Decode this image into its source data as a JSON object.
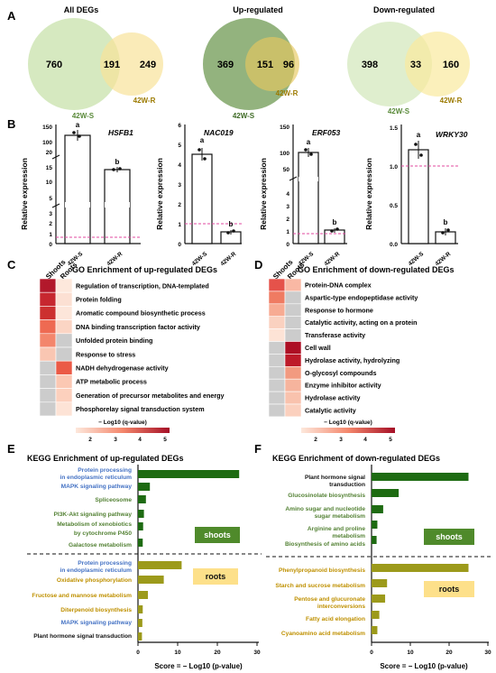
{
  "panels": {
    "A": "A",
    "B": "B",
    "C": "C",
    "D": "D",
    "E": "E",
    "F": "F"
  },
  "venn": [
    {
      "title": "All DEGs",
      "left": 760,
      "overlap": 191,
      "right": 249,
      "left_label": "42W-S",
      "right_label": "42W-R",
      "colors": [
        "#cfe5b5",
        "#f8e29a"
      ]
    },
    {
      "title": "Up-regulated",
      "left": 369,
      "overlap": 151,
      "right": 96,
      "left_label": "42W-S",
      "right_label": "42W-R",
      "colors": [
        "#6f9a53",
        "#e6c760"
      ]
    },
    {
      "title": "Down-regulated",
      "left": 398,
      "overlap": 33,
      "right": 160,
      "left_label": "42W-S",
      "right_label": "42W-R",
      "colors": [
        "#d9ebc6",
        "#faea9e"
      ]
    }
  ],
  "qpcr": {
    "ylabel": "Relative expression",
    "categories": [
      "42W-S",
      "42W-R"
    ],
    "ref_color": "#e0489f",
    "genes": [
      {
        "name": "HSFB1",
        "values": [
          140,
          20
        ],
        "letters": [
          "a",
          "b"
        ],
        "ticks": [
          "0",
          "1",
          "2",
          "3",
          "5",
          "10",
          "15",
          "20",
          "100",
          "150"
        ]
      },
      {
        "name": "NAC019",
        "values": [
          4.5,
          0.6
        ],
        "letters": [
          "a",
          "b"
        ],
        "ticks": [
          "0",
          "1",
          "2",
          "3",
          "4",
          "5",
          "6"
        ]
      },
      {
        "name": "ERF053",
        "values": [
          100,
          1.5
        ],
        "letters": [
          "a",
          "b"
        ],
        "ticks": [
          "0",
          "1",
          "2",
          "3",
          "4",
          "50",
          "100",
          "150"
        ]
      },
      {
        "name": "WRKY30",
        "values": [
          1.2,
          0.15
        ],
        "letters": [
          "a",
          "b"
        ],
        "ticks": [
          "0.0",
          "0.5",
          "1.0",
          "1.5"
        ]
      }
    ]
  },
  "go_up": {
    "title": "GO Enrichment of up-regulated DEGs",
    "columns": [
      "Shoots",
      "Roots"
    ],
    "terms": [
      {
        "label": "Regulation of transcription, DNA-templated",
        "cells": [
          "#b2182b",
          "#fde8dc"
        ]
      },
      {
        "label": "Protein folding",
        "cells": [
          "#c7272f",
          "#fce0d3"
        ]
      },
      {
        "label": "Aromatic compound biosynthetic process",
        "cells": [
          "#cc3030",
          "#fde6da"
        ]
      },
      {
        "label": "DNA binding transcription factor activity",
        "cells": [
          "#ee6a52",
          "#fbd5c4"
        ]
      },
      {
        "label": "Unfolded protein binding",
        "cells": [
          "#f3866c",
          "#cccccc"
        ]
      },
      {
        "label": "Response to stress",
        "cells": [
          "#f9c6b2",
          "#cccccc"
        ]
      },
      {
        "label": "NADH dehydrogenase activity",
        "cells": [
          "#cccccc",
          "#eb5a46"
        ]
      },
      {
        "label": "ATP metabolic process",
        "cells": [
          "#cccccc",
          "#fbc8b3"
        ]
      },
      {
        "label": "Generation of precursor metabolites and energy",
        "cells": [
          "#cccccc",
          "#fcd0bd"
        ]
      },
      {
        "label": "Phosphorelay signal transduction system",
        "cells": [
          "#cccccc",
          "#fde3d6"
        ]
      }
    ],
    "legend_label": "− Log10  (q-value)",
    "legend_ticks": [
      "2",
      "3",
      "4",
      "5"
    ]
  },
  "go_down": {
    "title": "GO Enrichment of down-regulated  DEGs",
    "columns": [
      "Shoots",
      "Roots"
    ],
    "terms": [
      {
        "label": "Protein-DNA complex",
        "cells": [
          "#e5524a",
          "#f9b8a4"
        ]
      },
      {
        "label": "Aspartic-type endopeptidase activity",
        "cells": [
          "#ef7b62",
          "#cccccc"
        ]
      },
      {
        "label": "Response to hormone",
        "cells": [
          "#f7ab93",
          "#cccccc"
        ]
      },
      {
        "label": "Catalytic activity, acting on a protein",
        "cells": [
          "#fad1c0",
          "#cccccc"
        ]
      },
      {
        "label": "Transferase activity",
        "cells": [
          "#fde3d6",
          "#cccccc"
        ]
      },
      {
        "label": "Cell wall",
        "cells": [
          "#cccccc",
          "#ad0f24"
        ]
      },
      {
        "label": "Hydrolase activity, hydrolyzing",
        "cells": [
          "#cccccc",
          "#bd1a29"
        ]
      },
      {
        "label": "O-glycosyl compounds",
        "cells": [
          "#cccccc",
          "#f29a80"
        ]
      },
      {
        "label": "Enzyme inhibitor activity",
        "cells": [
          "#cccccc",
          "#f6b49d"
        ]
      },
      {
        "label": "Hydrolase activity",
        "cells": [
          "#cccccc",
          "#f9c2ad"
        ]
      },
      {
        "label": "Catalytic activity",
        "cells": [
          "#cccccc",
          "#fbd0be"
        ]
      }
    ],
    "legend_label": "− Log10  (q-value)",
    "legend_ticks": [
      "2",
      "3",
      "4",
      "5"
    ]
  },
  "chart_data": [
    {
      "type": "bar",
      "title": "KEGG Enrichment of up-regulated DEGs",
      "xlabel": "Score = − Log10  (p-value)",
      "xlim": [
        0,
        30
      ],
      "x_ticks": [
        "0",
        "10",
        "20",
        "30"
      ],
      "groups": [
        {
          "name": "shoots",
          "categories": [
            "Protein processing in endoplasmic reticulum",
            "MAPK signaling pathway",
            "Spliceosome",
            "PI3K-Akt signaling pathway",
            "Metabolism of xenobiotics by cytochrome P450",
            "Galactose metabolism"
          ],
          "values": [
            25.5,
            3,
            2,
            1.5,
            1.3,
            1.2
          ],
          "label_colors": [
            "#4472c4",
            "#4472c4",
            "#548235",
            "#548235",
            "#548235",
            "#548235"
          ]
        },
        {
          "name": "roots",
          "categories": [
            "Protein processing in endoplasmic reticulum",
            "Oxidative phosphorylation",
            "Fructose and mannose metabolism",
            "Diterpenoid biosynthesis",
            "MAPK signaling pathway",
            "Plant hormone signal transduction"
          ],
          "values": [
            11,
            6.5,
            2.5,
            1.2,
            1.1,
            1
          ],
          "label_colors": [
            "#4472c4",
            "#bf9000",
            "#bf9000",
            "#bf9000",
            "#4472c4",
            "#111111"
          ]
        }
      ]
    },
    {
      "type": "bar",
      "title": "KEGG Enrichment of down-regulated  DEGs",
      "xlabel": "Score = − Log10  (p-value)",
      "xlim": [
        0,
        30
      ],
      "x_ticks": [
        "0",
        "10",
        "20",
        "30"
      ],
      "groups": [
        {
          "name": "shoots",
          "categories": [
            "Plant hormone signal transduction",
            "Glucosinolate biosynthesis",
            "Amino sugar and nucleotide sugar metabolism",
            "Arginine and proline metabolism",
            "Biosynthesis of amino acids"
          ],
          "values": [
            25,
            7,
            3,
            1.5,
            1.3
          ],
          "label_colors": [
            "#111111",
            "#548235",
            "#548235",
            "#548235",
            "#548235"
          ]
        },
        {
          "name": "roots",
          "categories": [
            "Phenylpropanoid biosynthesis",
            "Starch and sucrose metabolism",
            "Pentose and glucuronate interconversions",
            "Fatty acid elongation",
            "Cyanoamino acid metabolism"
          ],
          "values": [
            25,
            4,
            3.5,
            2,
            1.5
          ],
          "label_colors": [
            "#bf9000",
            "#bf9000",
            "#bf9000",
            "#bf9000",
            "#bf9000"
          ]
        }
      ]
    }
  ],
  "kegg_labels": {
    "shoots": "shoots",
    "roots": "roots"
  },
  "kegg_text": {
    "e_shoots": [
      "Protein processing",
      "in endoplasmic reticulum",
      "MAPK signaling pathway",
      "Spliceosome",
      "PI3K-Akt signaling pathway",
      "Metabolism of xenobiotics",
      "by cytochrome P450",
      "Galactose metabolism"
    ],
    "e_roots": [
      "Protein processing",
      "in endoplasmic reticulum",
      "Oxidative phosphorylation",
      "Fructose and mannose metabolism",
      "Diterpenoid biosynthesis",
      "MAPK signaling pathway",
      "Plant hormone signal transduction"
    ],
    "f_shoots": [
      "Plant hormone signal",
      "transduction",
      "Glucosinolate biosynthesis",
      "Amino sugar and nucleotide",
      "sugar metabolism",
      "Arginine and proline",
      "metabolism",
      "Biosynthesis of amino acids"
    ],
    "f_roots": [
      "Phenylpropanoid biosynthesis",
      "Starch and sucrose metabolism",
      "Pentose and glucuronate",
      "interconversions",
      "Fatty acid elongation",
      "Cyanoamino acid metabolism"
    ]
  },
  "colors": {
    "shoot_bar": "#1e6b12",
    "root_bar": "#9c9a1b",
    "shoot_box": "#4f8a2b",
    "root_box": "#fde08a",
    "blue": "#4472c4",
    "green": "#548235",
    "gold": "#bf9000"
  }
}
